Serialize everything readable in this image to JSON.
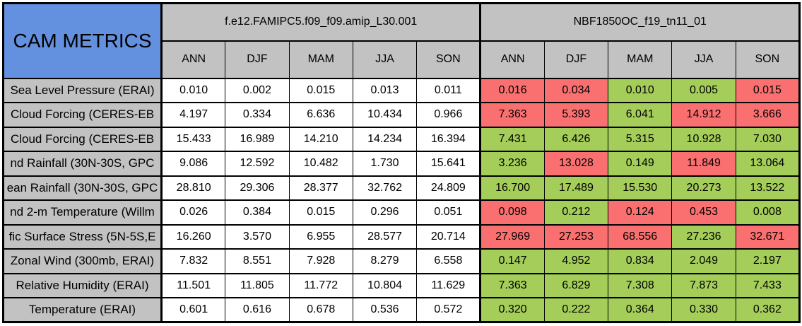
{
  "title": "CAM METRICS",
  "colors": {
    "blue": "#6391E0",
    "gray": "#C2C2C2",
    "green": "#A4CD5A",
    "red": "#FA7070"
  },
  "chart_data": {
    "type": "table",
    "title": "CAM METRICS",
    "column_groups": [
      "f.e12.FAMIPC5.f09_f09.amip_L30.001",
      "NBF1850OC_f19_tn11_01"
    ],
    "seasons": [
      "ANN",
      "DJF",
      "MAM",
      "JJA",
      "SON"
    ],
    "cell_color_legend": {
      "better": "green",
      "worse": "red"
    },
    "rows": [
      {
        "label": "Sea Level Pressure (ERAI)",
        "m1": [
          "0.010",
          "0.002",
          "0.015",
          "0.013",
          "0.011"
        ],
        "m2": [
          "0.016",
          "0.034",
          "0.010",
          "0.005",
          "0.015"
        ],
        "flags": [
          "worse",
          "worse",
          "better",
          "better",
          "worse"
        ]
      },
      {
        "label": "Cloud Forcing (CERES-EB",
        "m1": [
          "4.197",
          "0.334",
          "6.636",
          "10.434",
          "0.966"
        ],
        "m2": [
          "7.363",
          "5.393",
          "6.041",
          "14.912",
          "3.666"
        ],
        "flags": [
          "worse",
          "worse",
          "better",
          "worse",
          "worse"
        ]
      },
      {
        "label": "Cloud Forcing (CERES-EB",
        "m1": [
          "15.433",
          "16.989",
          "14.210",
          "14.234",
          "16.394"
        ],
        "m2": [
          "7.431",
          "6.426",
          "5.315",
          "10.928",
          "7.030"
        ],
        "flags": [
          "better",
          "better",
          "better",
          "better",
          "better"
        ]
      },
      {
        "label": "nd Rainfall (30N-30S, GPC",
        "m1": [
          "9.086",
          "12.592",
          "10.482",
          "1.730",
          "15.641"
        ],
        "m2": [
          "3.236",
          "13.028",
          "0.149",
          "11.849",
          "13.064"
        ],
        "flags": [
          "better",
          "worse",
          "better",
          "worse",
          "better"
        ]
      },
      {
        "label": "ean Rainfall (30N-30S, GPC",
        "m1": [
          "28.810",
          "29.306",
          "28.377",
          "32.762",
          "24.809"
        ],
        "m2": [
          "16.700",
          "17.489",
          "15.530",
          "20.273",
          "13.522"
        ],
        "flags": [
          "better",
          "better",
          "better",
          "better",
          "better"
        ]
      },
      {
        "label": "nd 2-m Temperature (Willm",
        "m1": [
          "0.026",
          "0.384",
          "0.015",
          "0.296",
          "0.051"
        ],
        "m2": [
          "0.098",
          "0.212",
          "0.124",
          "0.453",
          "0.008"
        ],
        "flags": [
          "worse",
          "better",
          "worse",
          "worse",
          "better"
        ]
      },
      {
        "label": "fic Surface Stress (5N-5S,E",
        "m1": [
          "16.260",
          "3.570",
          "6.955",
          "28.577",
          "20.714"
        ],
        "m2": [
          "27.969",
          "27.253",
          "68.556",
          "27.236",
          "32.671"
        ],
        "flags": [
          "worse",
          "worse",
          "worse",
          "better",
          "worse"
        ]
      },
      {
        "label": "Zonal Wind (300mb, ERAI)",
        "m1": [
          "7.832",
          "8.551",
          "7.928",
          "8.279",
          "6.558"
        ],
        "m2": [
          "0.147",
          "4.952",
          "0.834",
          "2.049",
          "2.197"
        ],
        "flags": [
          "better",
          "better",
          "better",
          "better",
          "better"
        ]
      },
      {
        "label": "Relative Humidity (ERAI)",
        "m1": [
          "11.501",
          "11.805",
          "11.772",
          "10.804",
          "11.629"
        ],
        "m2": [
          "7.363",
          "6.829",
          "7.308",
          "7.873",
          "7.433"
        ],
        "flags": [
          "better",
          "better",
          "better",
          "better",
          "better"
        ]
      },
      {
        "label": "Temperature (ERAI)",
        "m1": [
          "0.601",
          "0.616",
          "0.678",
          "0.536",
          "0.572"
        ],
        "m2": [
          "0.320",
          "0.222",
          "0.364",
          "0.330",
          "0.362"
        ],
        "flags": [
          "better",
          "better",
          "better",
          "better",
          "better"
        ]
      }
    ]
  }
}
